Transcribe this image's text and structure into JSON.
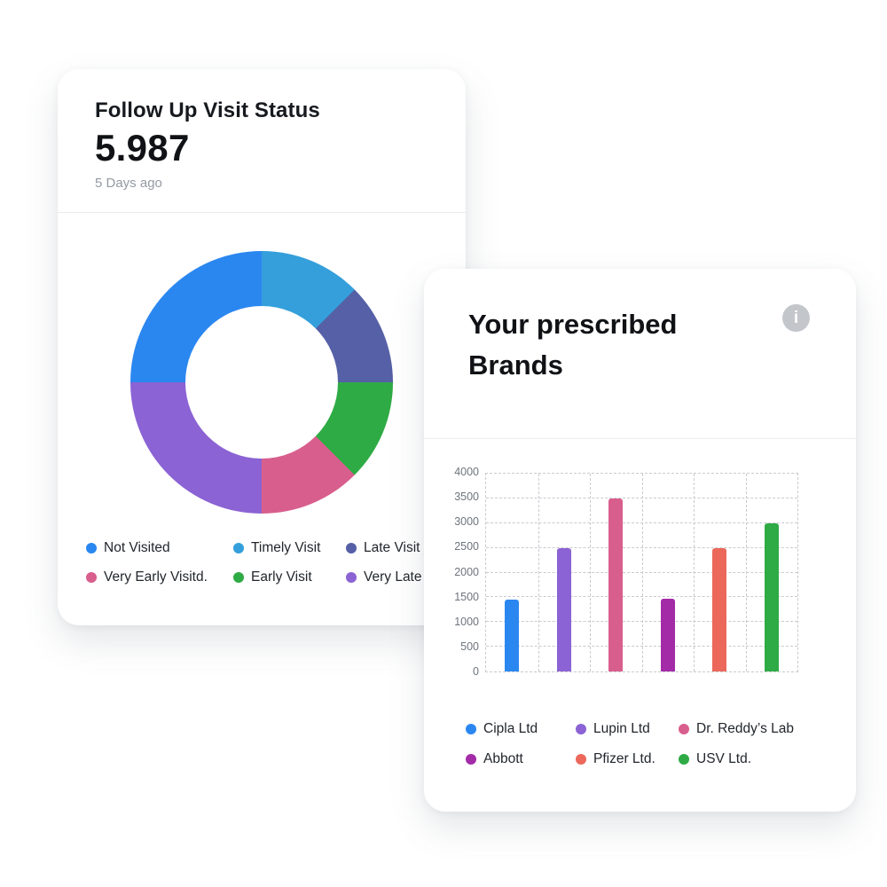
{
  "page": {
    "background": "#ffffff"
  },
  "cards": {
    "followUp": {
      "title": "Follow Up Visit Status",
      "value": "5.987",
      "subtitle": "5 Days ago"
    },
    "brands": {
      "title": "Your prescribed Brands",
      "info_icon_glyph": "i"
    }
  },
  "colors": {
    "blue": "#2b87f0",
    "light_blue": "#349fdb",
    "indigo": "#5560a6",
    "green": "#2fab45",
    "pink": "#d85e8d",
    "purple": "#8b63d4",
    "magenta": "#a32ba8",
    "coral": "#ec685a",
    "grid": "#c8cbcf",
    "divider": "#ececec",
    "info_icon_bg": "#c3c6ca"
  },
  "chart_data": [
    {
      "type": "pie",
      "title": "Follow Up Visit Status",
      "donut": true,
      "start_angle_deg": 0,
      "direction": "clockwise",
      "segments": [
        {
          "label": "Timely Visit",
          "value_pct": 12.5,
          "color": "#349fdb"
        },
        {
          "label": "Late Visit",
          "value_pct": 12.5,
          "color": "#5560a6"
        },
        {
          "label": "Early Visit",
          "value_pct": 12.5,
          "color": "#2fab45"
        },
        {
          "label": "Very Early Visitd.",
          "value_pct": 12.5,
          "color": "#d85e8d"
        },
        {
          "label": "Very Late",
          "value_pct": 25,
          "color": "#8b63d4"
        },
        {
          "label": "Not Visited",
          "value_pct": 25,
          "color": "#2b87f0"
        }
      ],
      "legend": [
        {
          "label": "Not Visited",
          "color": "#2b87f0"
        },
        {
          "label": "Timely Visit",
          "color": "#349fdb"
        },
        {
          "label": "Late Visit",
          "color": "#5560a6"
        },
        {
          "label": "Very Early Visitd.",
          "color": "#d85e8d"
        },
        {
          "label": "Early Visit",
          "color": "#2fab45"
        },
        {
          "label": "Very Late",
          "color": "#8b63d4"
        }
      ],
      "legend_position": "bottom"
    },
    {
      "type": "bar",
      "title": "Your prescribed Brands",
      "categories": [
        "Cipla Ltd",
        "Lupin Ltd",
        "Dr. Reddy’s Lab",
        "Abbott",
        "Pfizer Ltd.",
        "USV Ltd."
      ],
      "values": [
        1450,
        2500,
        3500,
        1480,
        2500,
        3000
      ],
      "colors": [
        "#2b87f0",
        "#8b63d4",
        "#d85e8d",
        "#a32ba8",
        "#ec685a",
        "#2fab45"
      ],
      "xlabel": "",
      "ylabel": "",
      "ylim": [
        0,
        4000
      ],
      "ytick_step": 500,
      "yticks": [
        0,
        500,
        1000,
        1500,
        2000,
        2500,
        3000,
        3500,
        4000
      ],
      "grid": "dashed-both",
      "legend_position": "bottom"
    }
  ]
}
